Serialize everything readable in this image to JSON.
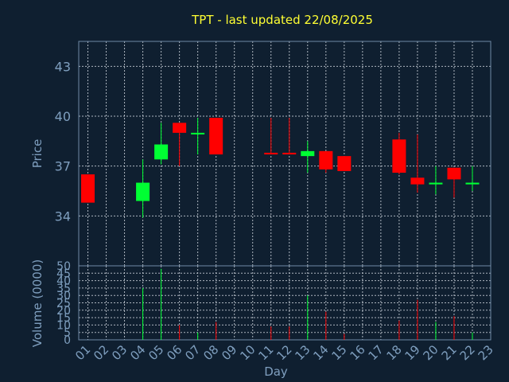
{
  "chart_data": [
    {
      "type": "candlestick",
      "title": "TPT - last updated 22/08/2025",
      "ylabel": "Price",
      "xlabel": "Day",
      "ylim": [
        31,
        44.5
      ],
      "yticks": [
        34,
        37,
        40,
        43
      ],
      "x_ticks": [
        "01",
        "02",
        "03",
        "04",
        "05",
        "06",
        "07",
        "08",
        "09",
        "10",
        "11",
        "12",
        "13",
        "14",
        "15",
        "16",
        "17",
        "18",
        "19",
        "20",
        "21",
        "22",
        "23"
      ],
      "colors": {
        "up": "#00ff33",
        "down": "#ff0000"
      },
      "candles": [
        {
          "day": 1,
          "open": 36.5,
          "close": 34.8,
          "high": 36.5,
          "low": 34.8
        },
        {
          "day": 4,
          "open": 34.9,
          "close": 36.0,
          "high": 37.4,
          "low": 33.9
        },
        {
          "day": 5,
          "open": 37.4,
          "close": 38.3,
          "high": 39.6,
          "low": 37.1
        },
        {
          "day": 6,
          "open": 39.6,
          "close": 39.0,
          "high": 39.6,
          "low": 37.0
        },
        {
          "day": 7,
          "open": 39.0,
          "close": 39.0,
          "high": 39.9,
          "low": 37.7
        },
        {
          "day": 8,
          "open": 39.9,
          "close": 37.7,
          "high": 39.9,
          "low": 37.7
        },
        {
          "day": 11,
          "open": 37.8,
          "close": 37.7,
          "high": 39.9,
          "low": 37.7
        },
        {
          "day": 12,
          "open": 37.8,
          "close": 37.7,
          "high": 39.9,
          "low": 37.7
        },
        {
          "day": 13,
          "open": 37.6,
          "close": 37.9,
          "high": 38.5,
          "low": 36.6
        },
        {
          "day": 14,
          "open": 37.9,
          "close": 36.8,
          "high": 37.9,
          "low": 36.6
        },
        {
          "day": 15,
          "open": 37.6,
          "close": 36.7,
          "high": 37.6,
          "low": 36.7
        },
        {
          "day": 18,
          "open": 38.6,
          "close": 36.6,
          "high": 39.0,
          "low": 36.5
        },
        {
          "day": 19,
          "open": 36.3,
          "close": 35.9,
          "high": 38.9,
          "low": 35.4
        },
        {
          "day": 20,
          "open": 35.9,
          "close": 36.0,
          "high": 37.0,
          "low": 35.3
        },
        {
          "day": 21,
          "open": 36.9,
          "close": 36.2,
          "high": 36.9,
          "low": 35.1
        },
        {
          "day": 22,
          "open": 35.9,
          "close": 36.0,
          "high": 37.0,
          "low": 35.5
        }
      ]
    },
    {
      "type": "bar",
      "ylabel": "Volume (0000)",
      "ylim": [
        0,
        50
      ],
      "yticks": [
        0,
        5,
        10,
        15,
        20,
        25,
        30,
        35,
        40,
        45,
        50
      ],
      "volumes": [
        {
          "day": 1,
          "value": 0,
          "up": false
        },
        {
          "day": 4,
          "value": 35,
          "up": true
        },
        {
          "day": 5,
          "value": 48,
          "up": true
        },
        {
          "day": 6,
          "value": 10,
          "up": false
        },
        {
          "day": 7,
          "value": 5,
          "up": true
        },
        {
          "day": 8,
          "value": 12,
          "up": false
        },
        {
          "day": 11,
          "value": 9,
          "up": false
        },
        {
          "day": 12,
          "value": 9,
          "up": false
        },
        {
          "day": 13,
          "value": 30,
          "up": true
        },
        {
          "day": 14,
          "value": 19,
          "up": false
        },
        {
          "day": 15,
          "value": 4,
          "up": false
        },
        {
          "day": 18,
          "value": 13,
          "up": false
        },
        {
          "day": 19,
          "value": 27,
          "up": false
        },
        {
          "day": 20,
          "value": 12,
          "up": true
        },
        {
          "day": 21,
          "value": 16,
          "up": false
        },
        {
          "day": 22,
          "value": 5,
          "up": true
        }
      ]
    }
  ]
}
